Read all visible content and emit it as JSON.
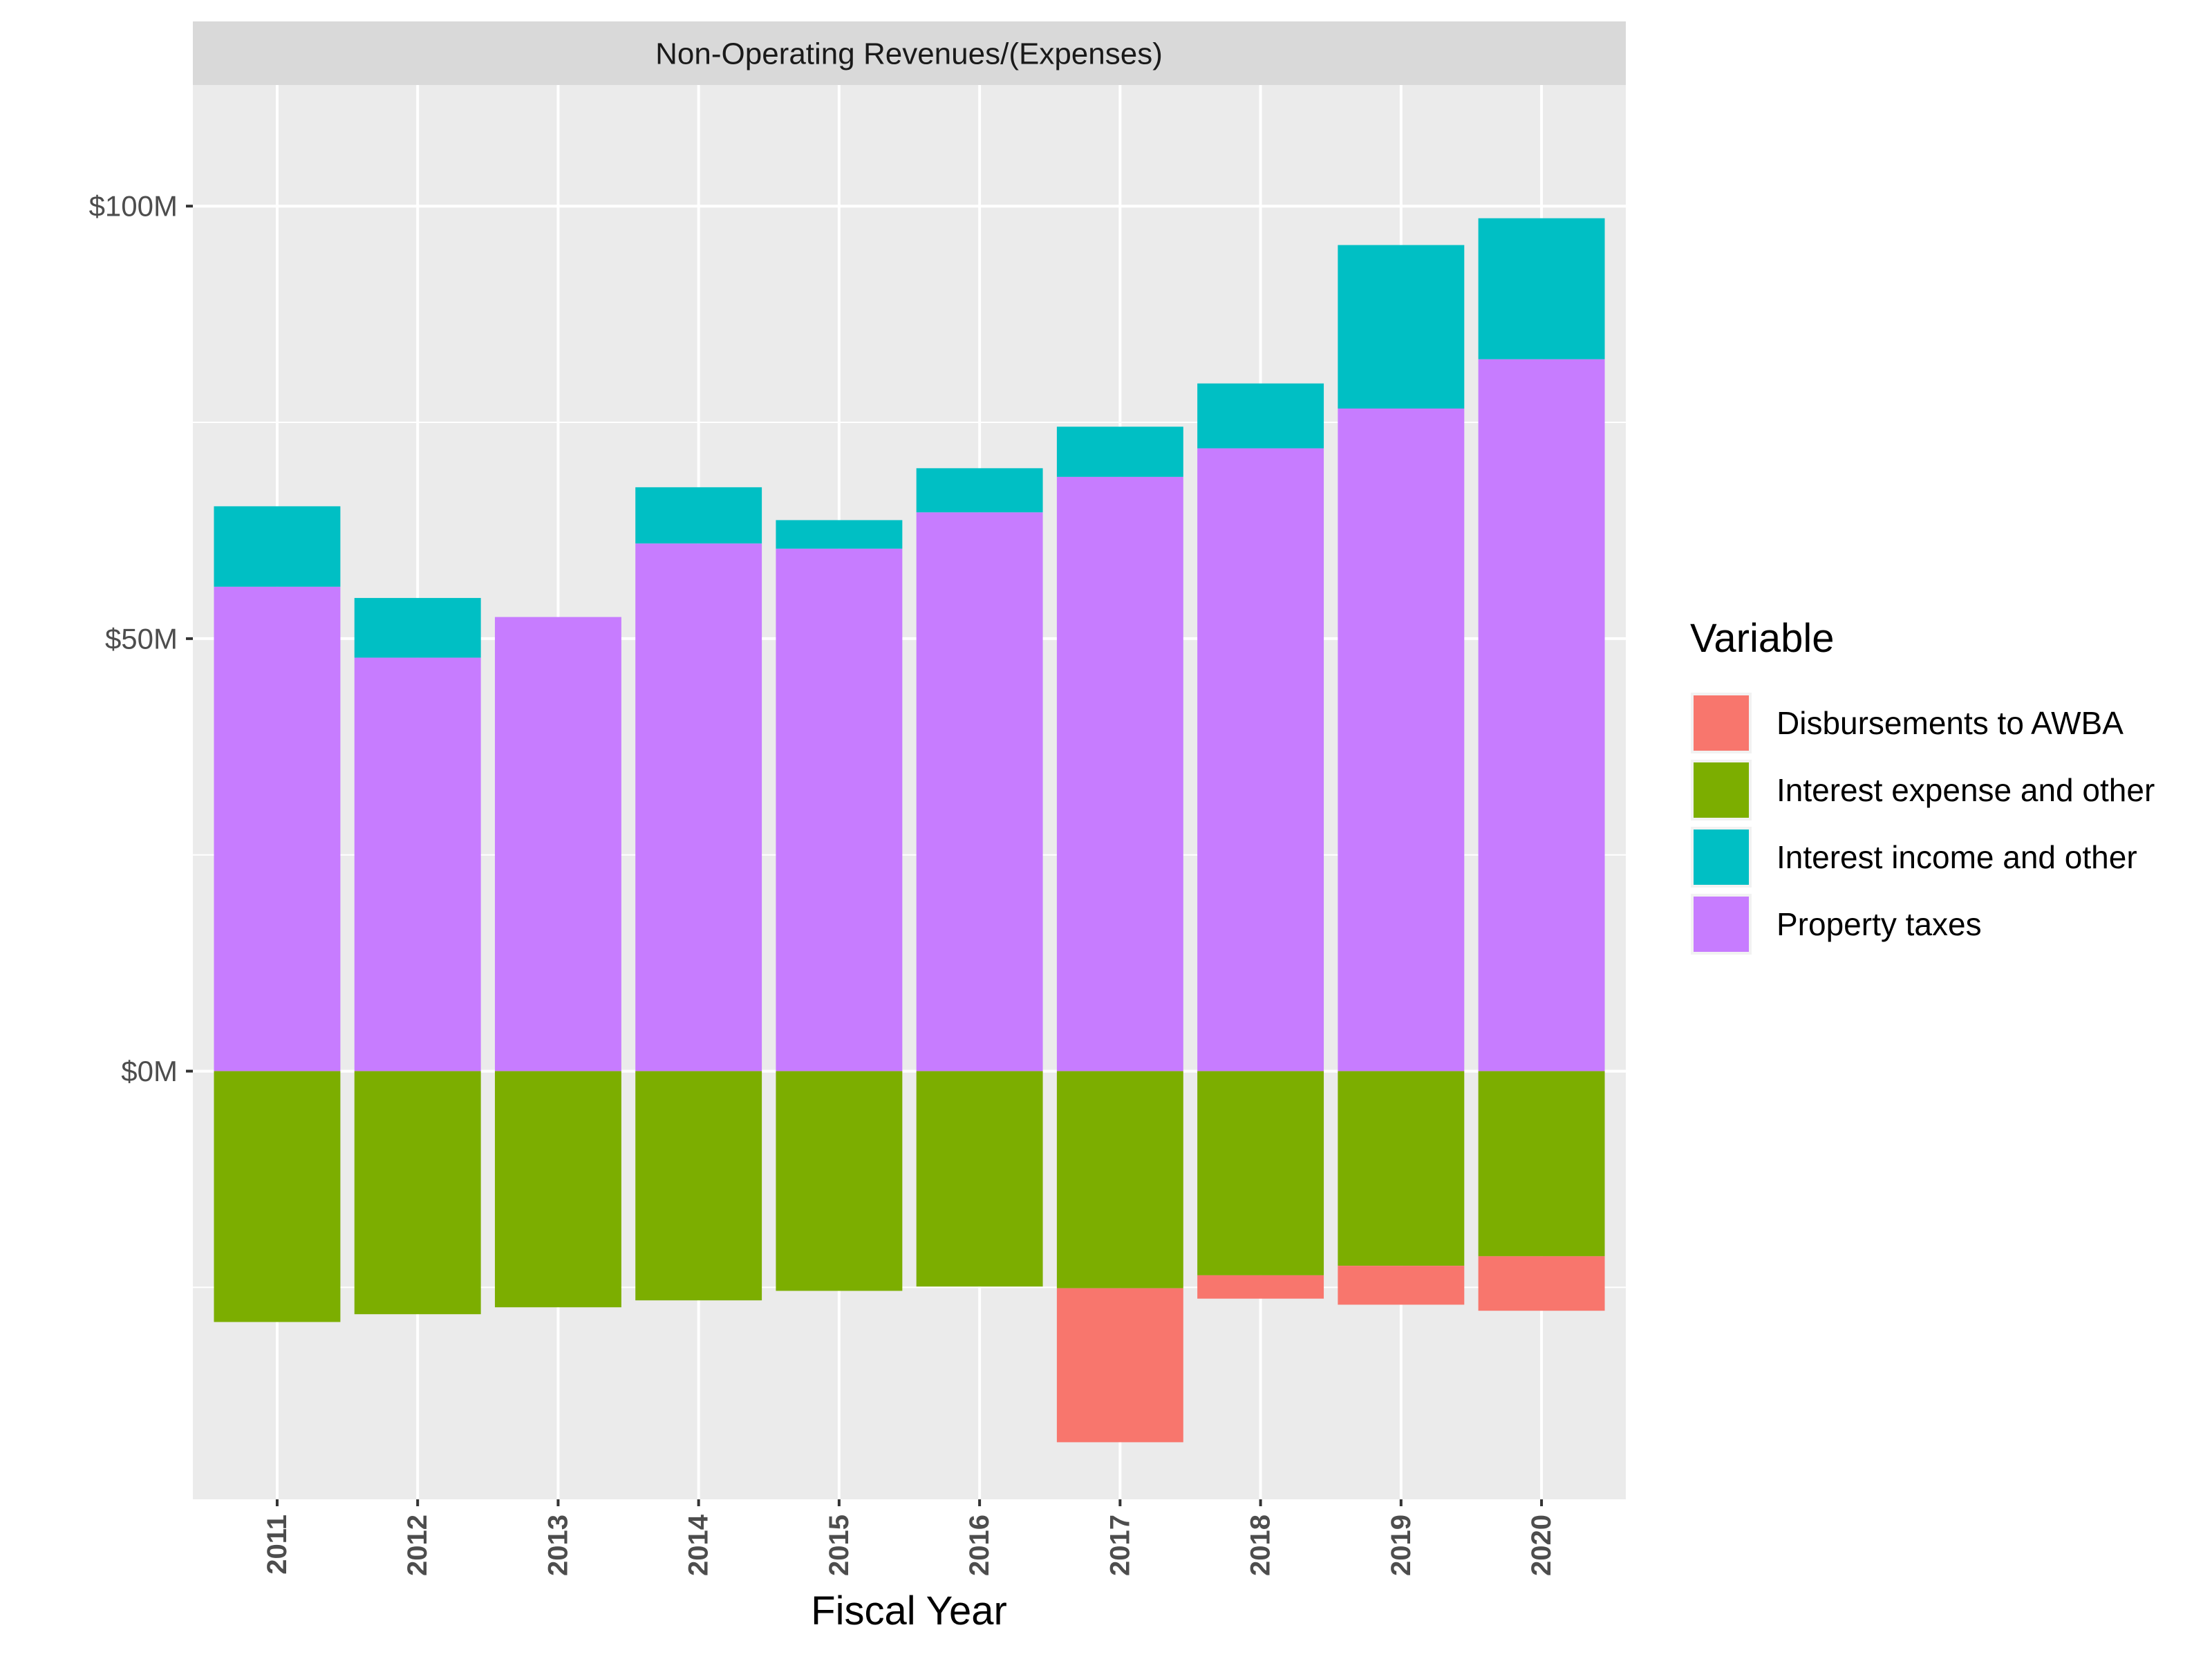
{
  "chart_data": {
    "type": "bar",
    "stacked": true,
    "facet_title": "Non-Operating Revenues/(Expenses)",
    "xlabel": "Fiscal Year",
    "ylabel": "",
    "categories": [
      "2011",
      "2012",
      "2013",
      "2014",
      "2015",
      "2016",
      "2017",
      "2018",
      "2019",
      "2020"
    ],
    "ylim": [
      -49.5,
      114
    ],
    "y_ticks": [
      {
        "value": 100,
        "label": "$100M"
      },
      {
        "value": 50,
        "label": "$50M"
      },
      {
        "value": 0,
        "label": "$0M"
      }
    ],
    "grid": true,
    "legend": {
      "title": "Variable",
      "position": "right"
    },
    "series": [
      {
        "name": "Disbursements to AWBA",
        "color": "#F8766D",
        "sign": "negative",
        "values": [
          0,
          0,
          0,
          0,
          0,
          0,
          17.8,
          2.7,
          4.5,
          6.3
        ]
      },
      {
        "name": "Interest expense and other",
        "color": "#7CAE00",
        "sign": "negative",
        "values": [
          29.0,
          28.1,
          27.3,
          26.5,
          25.4,
          24.9,
          25.1,
          23.6,
          22.5,
          21.4
        ]
      },
      {
        "name": "Interest income and other",
        "color": "#00BFC4",
        "sign": "positive",
        "values": [
          9.3,
          6.9,
          0,
          6.5,
          3.3,
          5.1,
          5.8,
          7.5,
          18.9,
          16.3
        ]
      },
      {
        "name": "Property taxes",
        "color": "#C77CFF",
        "sign": "positive",
        "values": [
          56.0,
          47.8,
          52.5,
          61.0,
          60.4,
          64.6,
          68.7,
          72.0,
          76.6,
          82.3
        ]
      }
    ]
  }
}
